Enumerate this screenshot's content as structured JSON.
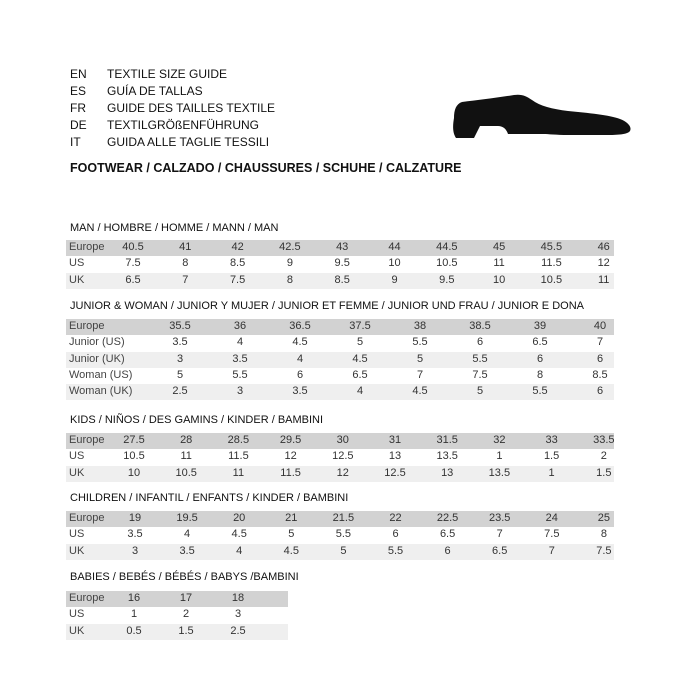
{
  "languages": [
    {
      "code": "EN",
      "text": "TEXTILE SIZE GUIDE"
    },
    {
      "code": "ES",
      "text": "GUÍA DE TALLAS"
    },
    {
      "code": "FR",
      "text": "GUIDE DES TAILLES TEXTILE"
    },
    {
      "code": "DE",
      "text": "TEXTILGRÖßENFÜHRUNG"
    },
    {
      "code": "IT",
      "text": "GUIDA ALLE TAGLIE TESSILI"
    }
  ],
  "footwear_title": "FOOTWEAR / CALZADO / CHAUSSURES / SCHUHE / CALZATURE",
  "icon": "shoe-icon",
  "colors": {
    "header_row": "#d2d2d2",
    "alt_row": "#efefef"
  },
  "tables": [
    {
      "title": "MAN / HOMBRE / HOMME / MANN / MAN",
      "rows": [
        {
          "label": "Europe",
          "values": [
            "40.5",
            "41",
            "42",
            "42.5",
            "43",
            "44",
            "44.5",
            "45",
            "45.5",
            "46"
          ]
        },
        {
          "label": "US",
          "values": [
            "7.5",
            "8",
            "8.5",
            "9",
            "9.5",
            "10",
            "10.5",
            "11",
            "11.5",
            "12"
          ]
        },
        {
          "label": "UK",
          "values": [
            "6.5",
            "7",
            "7.5",
            "8",
            "8.5",
            "9",
            "9.5",
            "10",
            "10.5",
            "11"
          ]
        }
      ]
    },
    {
      "title": "JUNIOR & WOMAN / JUNIOR Y MUJER / JUNIOR ET FEMME / JUNIOR UND FRAU / JUNIOR E DONA",
      "rows": [
        {
          "label": "Europe",
          "values": [
            "35.5",
            "36",
            "36.5",
            "37.5",
            "38",
            "38.5",
            "39",
            "40"
          ]
        },
        {
          "label": "Junior (US)",
          "values": [
            "3.5",
            "4",
            "4.5",
            "5",
            "5.5",
            "6",
            "6.5",
            "7"
          ]
        },
        {
          "label": "Junior (UK)",
          "values": [
            "3",
            "3.5",
            "4",
            "4.5",
            "5",
            "5.5",
            "6",
            "6"
          ]
        },
        {
          "label": "Woman (US)",
          "values": [
            "5",
            "5.5",
            "6",
            "6.5",
            "7",
            "7.5",
            "8",
            "8.5"
          ]
        },
        {
          "label": "Woman (UK)",
          "values": [
            "2.5",
            "3",
            "3.5",
            "4",
            "4.5",
            "5",
            "5.5",
            "6"
          ]
        }
      ]
    },
    {
      "title": "KIDS / NIÑOS / DES GAMINS / KINDER / BAMBINI",
      "rows": [
        {
          "label": "Europe",
          "values": [
            "27.5",
            "28",
            "28.5",
            "29.5",
            "30",
            "31",
            "31.5",
            "32",
            "33",
            "33.5"
          ]
        },
        {
          "label": "US",
          "values": [
            "10.5",
            "11",
            "11.5",
            "12",
            "12.5",
            "13",
            "13.5",
            "1",
            "1.5",
            "2"
          ]
        },
        {
          "label": "UK",
          "values": [
            "10",
            "10.5",
            "11",
            "11.5",
            "12",
            "12.5",
            "13",
            "13.5",
            "1",
            "1.5"
          ]
        }
      ]
    },
    {
      "title": "CHILDREN / INFANTIL / ENFANTS / KINDER / BAMBINI",
      "rows": [
        {
          "label": "Europe",
          "values": [
            "19",
            "19.5",
            "20",
            "21",
            "21.5",
            "22",
            "22.5",
            "23.5",
            "24",
            "25"
          ]
        },
        {
          "label": "US",
          "values": [
            "3.5",
            "4",
            "4.5",
            "5",
            "5.5",
            "6",
            "6.5",
            "7",
            "7.5",
            "8"
          ]
        },
        {
          "label": "UK",
          "values": [
            "3",
            "3.5",
            "4",
            "4.5",
            "5",
            "5.5",
            "6",
            "6.5",
            "7",
            "7.5"
          ]
        }
      ]
    },
    {
      "title": "BABIES  / BEBÉS / BÉBÉS / BABYS /BAMBINI",
      "rows": [
        {
          "label": "Europe",
          "values": [
            "16",
            "17",
            "18"
          ]
        },
        {
          "label": "US",
          "values": [
            "1",
            "2",
            "3"
          ]
        },
        {
          "label": "UK",
          "values": [
            "0.5",
            "1.5",
            "2.5"
          ]
        }
      ]
    }
  ]
}
